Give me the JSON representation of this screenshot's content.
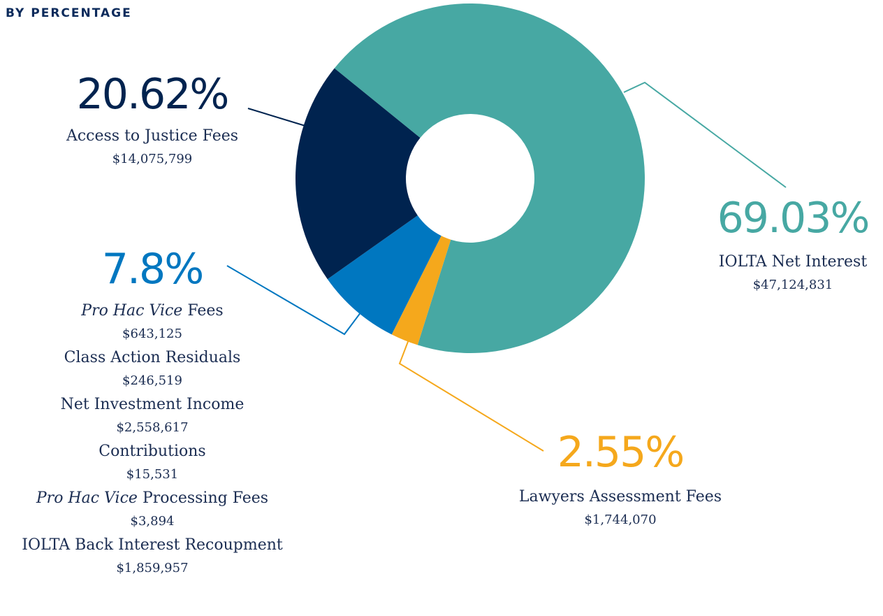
{
  "chart_data": {
    "type": "donut",
    "title": "BY PERCENTAGE",
    "slices": [
      {
        "value": 69.03,
        "value_label": "69.03%",
        "color": "#47a8a3",
        "items": [
          {
            "name": "IOLTA Net Interest",
            "amount": "$47,124,831"
          }
        ]
      },
      {
        "value": 2.55,
        "value_label": "2.55%",
        "color": "#f5a81c",
        "items": [
          {
            "name": "Lawyers Assessment Fees",
            "amount": "$1,744,070"
          }
        ]
      },
      {
        "value": 7.8,
        "value_label": "7.8%",
        "color": "#0077c0",
        "items": [
          {
            "name_em": "Pro Hac Vice",
            "name": "Fees",
            "amount": "$643,125"
          },
          {
            "name": "Class Action Residuals",
            "amount": "$246,519"
          },
          {
            "name": "Net Investment Income",
            "amount": "$2,558,617"
          },
          {
            "name": "Contributions",
            "amount": "$15,531"
          },
          {
            "name_em": "Pro Hac Vice",
            "name": "Processing Fees",
            "amount": "$3,894"
          },
          {
            "name": "IOLTA Back Interest Recoupment",
            "amount": "$1,859,957"
          }
        ]
      },
      {
        "value": 20.62,
        "value_label": "20.62%",
        "color": "#00234f",
        "items": [
          {
            "name": "Access to Justice Fees",
            "amount": "$14,075,799"
          }
        ]
      }
    ]
  }
}
